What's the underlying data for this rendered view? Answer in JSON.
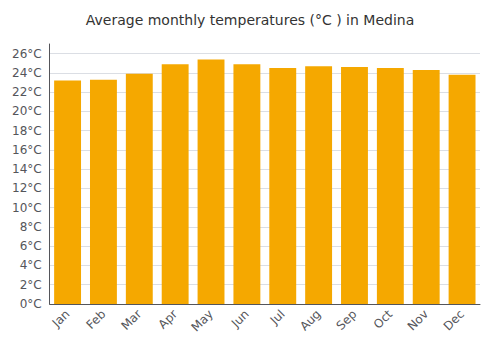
{
  "chart_data": {
    "type": "bar",
    "title": "Average monthly temperatures (°C ) in Medina",
    "categories": [
      "Jan",
      "Feb",
      "Mar",
      "Apr",
      "May",
      "Jun",
      "Jul",
      "Aug",
      "Sep",
      "Oct",
      "Nov",
      "Dec"
    ],
    "values": [
      23.2,
      23.3,
      23.9,
      24.9,
      25.4,
      24.9,
      24.5,
      24.7,
      24.6,
      24.5,
      24.3,
      23.8
    ],
    "color": "#F5A800",
    "ylim": [
      0,
      27
    ],
    "yticks": [
      {
        "value": 0,
        "label": "0°C"
      },
      {
        "value": 2,
        "label": "2°C"
      },
      {
        "value": 4,
        "label": "4°C"
      },
      {
        "value": 6,
        "label": "6°C"
      },
      {
        "value": 8,
        "label": "8°C"
      },
      {
        "value": 10,
        "label": "10°C"
      },
      {
        "value": 12,
        "label": "12°C"
      },
      {
        "value": 14,
        "label": "14°C"
      },
      {
        "value": 16,
        "label": "16°C"
      },
      {
        "value": 18,
        "label": "18°C"
      },
      {
        "value": 20,
        "label": "20°C"
      },
      {
        "value": 22,
        "label": "22°C"
      },
      {
        "value": 24,
        "label": "24°C"
      },
      {
        "value": 26,
        "label": "26°C"
      }
    ],
    "grid": true
  }
}
